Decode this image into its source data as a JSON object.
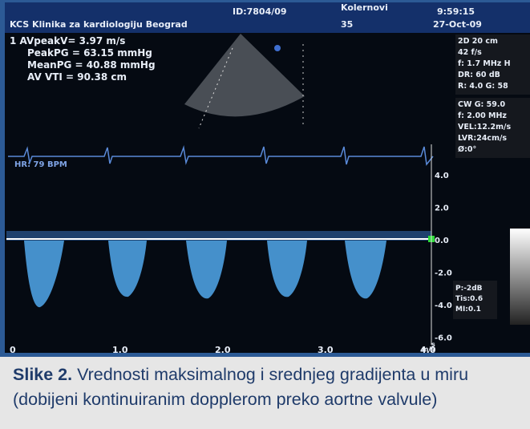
{
  "header": {
    "institution": "KCS Klinika za kardiologiju Beograd",
    "id": "ID:7804/09",
    "patient": "Kolernovi",
    "age": "35",
    "time": "9:59:15",
    "date": "27-Oct-09"
  },
  "measurements": [
    "1 AVpeakV= 3.97 m/s",
    "PeakPG = 63.15 mmHg",
    "MeanPG = 40.88 mmHg",
    "AV VTI = 90.38 cm"
  ],
  "settings_2d": [
    "2D 20 cm",
    "42 f/s",
    "f: 1.7 MHz H",
    "DR: 60 dB",
    "R: 4.0  G: 58"
  ],
  "settings_cw": [
    "CW G: 59.0",
    "f: 2.00 MHz",
    "VEL:12.2m/s",
    "LVR:24cm/s",
    "Ø:0°"
  ],
  "heart_rate": "HR: 79 BPM",
  "velocity_scale": [
    "4.0",
    "2.0",
    "0.0",
    "-2.0",
    "-4.0",
    "-6.0"
  ],
  "velocity_unit": "m/s",
  "time_scale": [
    "0",
    "1.0",
    "2.0",
    "3.0",
    "4.0"
  ],
  "time_unit": "s",
  "output": [
    "P:-2dB",
    "Tis:0.6",
    "MI:0.1"
  ],
  "caption": {
    "label": "Slike 2.",
    "text": "Vrednosti maksimalnog i srednjeg gradijenta u miru (dobijeni kontinuiranim dopplerom preko aortne valvule)"
  }
}
